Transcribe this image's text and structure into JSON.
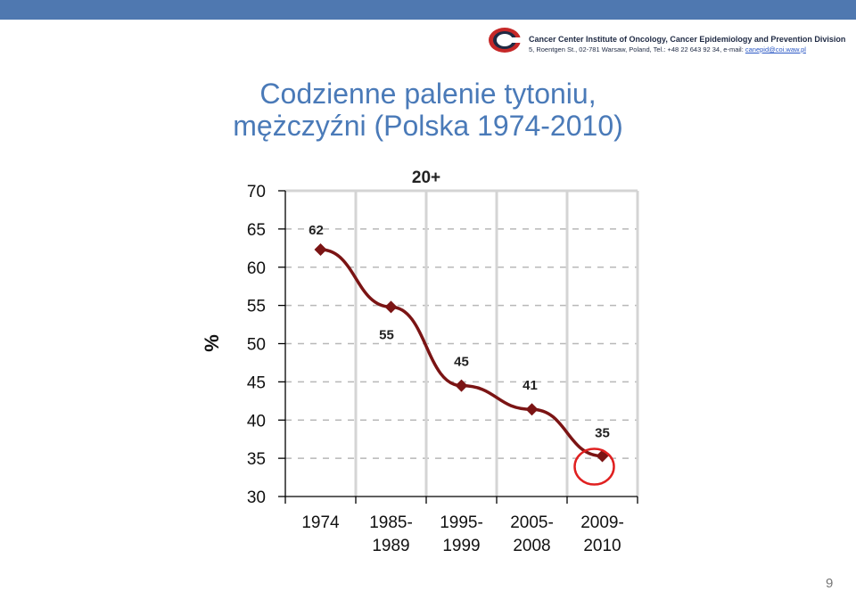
{
  "header": {
    "line1": "Cancer Center Institute of Oncology, Cancer Epidemiology and Prevention Division",
    "line2": "5, Roentgen St., 02-781 Warsaw, Poland, Tel.: +48 22 643 92 34, e-mail: ",
    "email": "canepid@coi.waw.pl",
    "logo_icon": "cancer-center-logo",
    "bar_color": "#4f78b0"
  },
  "title": {
    "line1": "Codzienne palenie tytoniu,",
    "line2": "mężczyźni (Polska 1974-2010)",
    "color": "#4a7ab8"
  },
  "chart_data": {
    "type": "line",
    "subtitle": "20+",
    "ylabel": "%",
    "xlabel": "",
    "ylim": [
      30,
      70
    ],
    "yticks": [
      30,
      35,
      40,
      45,
      50,
      55,
      60,
      65,
      70
    ],
    "grid": "horizontal-dashed",
    "categories": [
      [
        "1974"
      ],
      [
        "1985-",
        "1989"
      ],
      [
        "1995-",
        "1999"
      ],
      [
        "2005-",
        "2008"
      ],
      [
        "2009-",
        "2010"
      ]
    ],
    "values": [
      62.3,
      54.8,
      44.5,
      41.4,
      35.3
    ],
    "data_labels": [
      "62",
      "55",
      "45",
      "41",
      "35"
    ],
    "highlight_index": 4,
    "line_color": "#7b1414",
    "highlight_color": "#e02020"
  },
  "page_number": "9"
}
